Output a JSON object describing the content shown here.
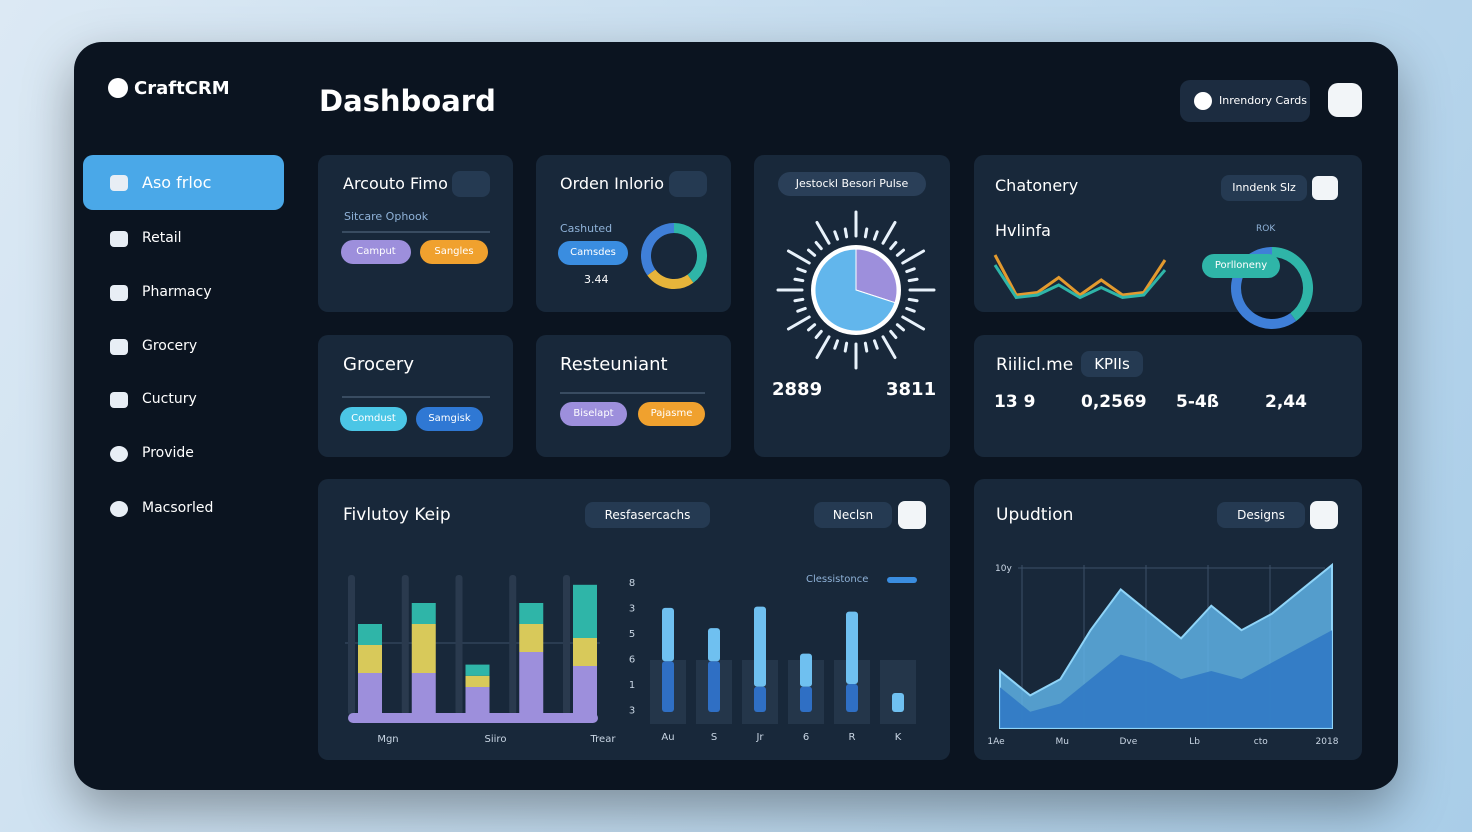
{
  "sidebar": {
    "brand": "CraftCRM",
    "nav": [
      "Aso frloc",
      "Retail",
      "Pharmacy",
      "Grocery",
      "Cuctury",
      "Provide",
      "Macsorled"
    ]
  },
  "header": {
    "title": "Dashboard",
    "button": "Inrendory Cards"
  },
  "account": {
    "title": "Arcouto Fimo",
    "subtitle": "Sitcare Ophook",
    "pills": [
      "Camput",
      "Sangles"
    ]
  },
  "orders": {
    "title": "Orden Inlorio",
    "label": "Cashuted",
    "pill": "Camsdes",
    "value": "3.44",
    "donut": {
      "values": [
        40,
        25,
        35
      ],
      "colors": [
        "#2fb5a8",
        "#e6b43a",
        "#3f7fd8"
      ]
    }
  },
  "pulse": {
    "title": "Jestockl Besori Pulse",
    "pie": {
      "values": [
        30,
        70
      ],
      "colors": [
        "#9d8fdc",
        "#62b6ec"
      ]
    },
    "stats": [
      "2889",
      "3811"
    ]
  },
  "chatonery": {
    "title": "Chatonery",
    "button": "Inndenk Slz",
    "subtitle": "Hvlinfa",
    "pill": "Porlloneny",
    "donut_label": "ROK",
    "line": {
      "type": "line",
      "ylim": [
        0,
        100
      ],
      "series": [
        {
          "color": "#e39a2e",
          "values": [
            90,
            10,
            15,
            45,
            10,
            40,
            10,
            15,
            80
          ]
        },
        {
          "color": "#2fb5a8",
          "values": [
            70,
            5,
            10,
            30,
            5,
            25,
            5,
            10,
            60
          ]
        }
      ]
    },
    "donut": {
      "values": [
        40,
        60
      ],
      "colors": [
        "#2fb5a8",
        "#3f7fd8"
      ]
    }
  },
  "grocery": {
    "title": "Grocery",
    "pills": [
      "Comdust",
      "Samgisk"
    ]
  },
  "restaurant": {
    "title": "Resteuniant",
    "pills": [
      "Biselapt",
      "Pajasme"
    ]
  },
  "kpis": {
    "title": "Riilicl.me",
    "badge": "KPIIs",
    "values": [
      "13 9",
      "0,2569",
      "5-4ß",
      "2,44"
    ]
  },
  "activity": {
    "title": "Fivlutoy Keip",
    "dropdowns": [
      "Resfasercachs",
      "Neclsn"
    ],
    "stacked": {
      "type": "bar",
      "categories": [
        "Mgn",
        null,
        "Siiro",
        null,
        "Trear"
      ],
      "ylim": [
        0,
        100
      ],
      "series": [
        {
          "color": "#9d8fdc",
          "values": [
            30,
            30,
            20,
            45,
            35
          ]
        },
        {
          "color": "#d8c95a",
          "values": [
            20,
            35,
            8,
            20,
            20
          ]
        },
        {
          "color": "#2fb5a8",
          "values": [
            15,
            15,
            8,
            15,
            38
          ]
        }
      ]
    },
    "bars": {
      "type": "bar",
      "legend": "Clessistonce",
      "axis_labels": [
        "8",
        "3",
        "5",
        "6",
        "1",
        "3"
      ],
      "categories": [
        "Au",
        "S",
        "Jr",
        "6",
        "R",
        "K"
      ],
      "ylim": [
        0,
        100
      ],
      "series": [
        {
          "color": "#2f6fc4",
          "values": [
            40,
            40,
            20,
            20,
            22,
            0
          ]
        },
        {
          "color": "#6fc0f0",
          "values": [
            42,
            26,
            63,
            26,
            57,
            15
          ]
        }
      ]
    }
  },
  "update": {
    "title": "Upudtion",
    "dropdown": "Designs",
    "area": {
      "type": "area",
      "y_label": "10y",
      "x_labels": [
        "1Ae",
        "Mu",
        "Dve",
        "Lb",
        "cto",
        "2018"
      ],
      "ylim": [
        0,
        100
      ],
      "series": [
        {
          "color": "#5fb2e6",
          "values": [
            35,
            20,
            30,
            60,
            85,
            70,
            55,
            75,
            60,
            70,
            85,
            100
          ]
        },
        {
          "color": "#2f78c4",
          "values": [
            25,
            10,
            15,
            30,
            45,
            40,
            30,
            35,
            30,
            40,
            50,
            60
          ]
        }
      ]
    }
  }
}
